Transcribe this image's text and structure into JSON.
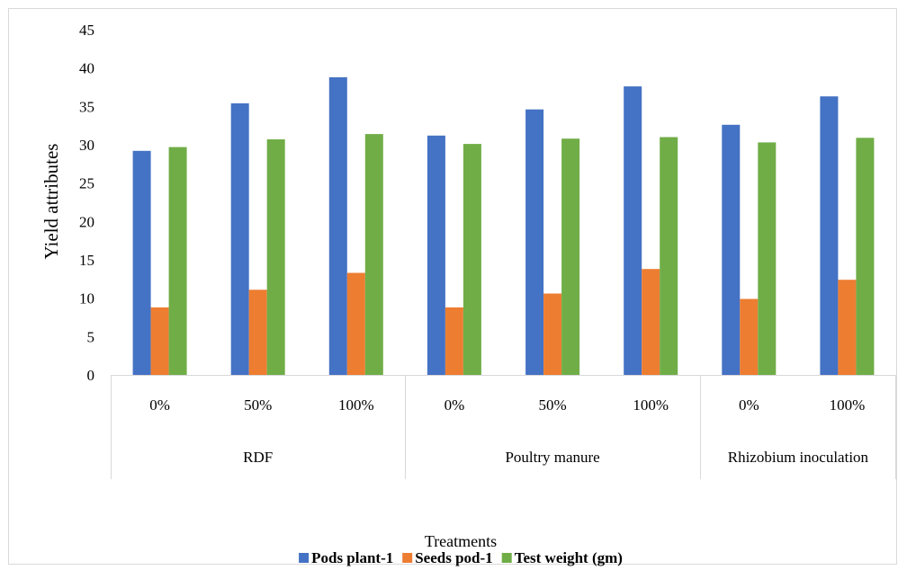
{
  "chart_data": {
    "type": "bar",
    "ylabel": "Yield attributes",
    "xlabel": "Treatments",
    "ylim": [
      0,
      45
    ],
    "yticks": [
      0,
      5,
      10,
      15,
      20,
      25,
      30,
      35,
      40,
      45
    ],
    "grid": false,
    "legend_position": "bottom",
    "groups": [
      {
        "label": "RDF",
        "categories": [
          "0%",
          "50%",
          "100%"
        ]
      },
      {
        "label": "Poultry manure",
        "categories": [
          "0%",
          "50%",
          "100%"
        ]
      },
      {
        "label": "Rhizobium inoculation",
        "categories": [
          "0%",
          "100%"
        ]
      }
    ],
    "categories": [
      "0%",
      "50%",
      "100%",
      "0%",
      "50%",
      "100%",
      "0%",
      "100%"
    ],
    "series": [
      {
        "name": "Pods plant-1",
        "color": "#4472c4",
        "values": [
          29.2,
          35.4,
          38.8,
          31.2,
          34.6,
          37.6,
          32.6,
          36.3
        ]
      },
      {
        "name": "Seeds pod-1",
        "color": "#ed7d31",
        "values": [
          8.8,
          11.1,
          13.3,
          8.8,
          10.6,
          13.8,
          9.9,
          12.4
        ]
      },
      {
        "name": "Test weight (gm)",
        "color": "#70ad47",
        "values": [
          29.7,
          30.7,
          31.4,
          30.1,
          30.8,
          31.0,
          30.3,
          30.9
        ]
      }
    ]
  }
}
